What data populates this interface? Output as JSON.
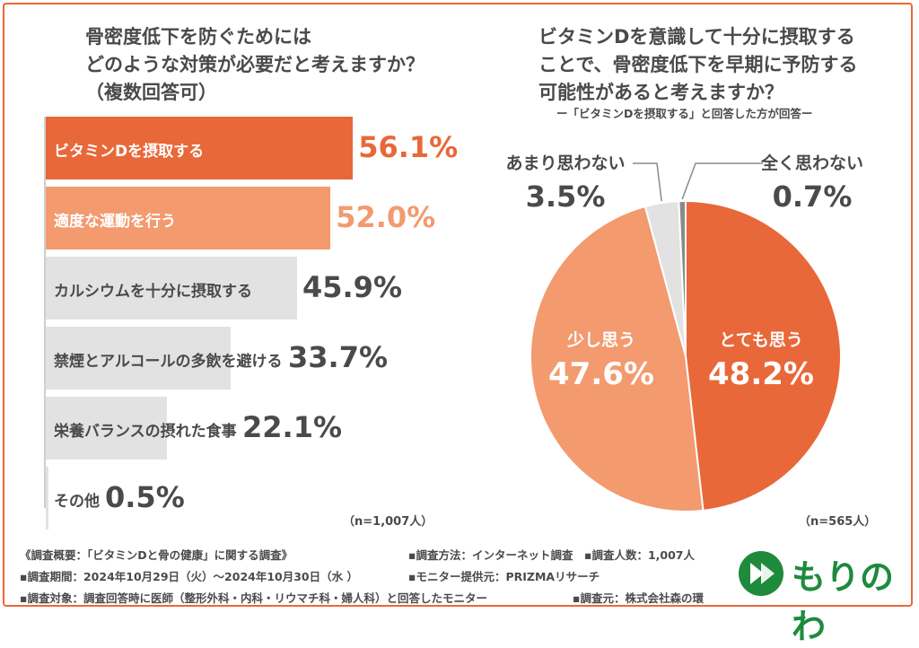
{
  "left_title": "骨密度低下を防ぐためには\nどのような対策が必要だと考えますか？\n（複数回答可）",
  "right_title": "ビタミンDを意識して十分に摂取する\nことで、骨密度低下を早期に予防する\n可能性があると考えますか？",
  "right_subtitle": "ー「ビタミンDを摂取する」と回答した方が回答ー",
  "left_n": "（n=1,007人）",
  "right_n": "（n=565人）",
  "colors": {
    "accent": "#e8683a",
    "light_accent": "#f39a6f",
    "gray": "#e2e2e2",
    "dark_gray": "#8a8a8a",
    "text": "#4a4a4a",
    "logo": "#1e8a3c"
  },
  "chart_data": [
    {
      "type": "bar",
      "orientation": "horizontal",
      "categories": [
        "ビタミンDを摂取する",
        "適度な運動を行う",
        "カルシウムを十分に摂取する",
        "禁煙とアルコールの多飲を避ける",
        "栄養バランスの摂れた食事",
        "その他"
      ],
      "values": [
        56.1,
        52.0,
        45.9,
        33.7,
        22.1,
        0.5
      ],
      "value_labels": [
        "56.1%",
        "52.0%",
        "45.9%",
        "33.7%",
        "22.1%",
        "0.5%"
      ],
      "unit": "%"
    },
    {
      "type": "pie",
      "categories": [
        "とても思う",
        "少し思う",
        "あまり思わない",
        "全く思わない"
      ],
      "values": [
        48.2,
        47.6,
        3.5,
        0.7
      ],
      "value_labels": [
        "48.2%",
        "47.6%",
        "3.5%",
        "0.7%"
      ],
      "unit": "%"
    }
  ],
  "footer": {
    "line1_a": "《調査概要：「ビタミンDと骨の健康」に関する調査》",
    "line1_b": "▪調査方法：インターネット調査　▪調査人数：1,007人",
    "line2_a": "▪調査期間：2024年10月29日（火）〜2024年10月30日（水 ）",
    "line2_b": "▪モニター提供元：PRIZMAリサーチ",
    "line3_a": "▪調査対象：調査回答時に医師（整形外科・内科・リウマチ科・婦人科）と回答したモニター",
    "line3_b": "▪調査元：株式会社森の環"
  },
  "logo": {
    "text": "もりのわ",
    "icon": "leaf-icon"
  }
}
